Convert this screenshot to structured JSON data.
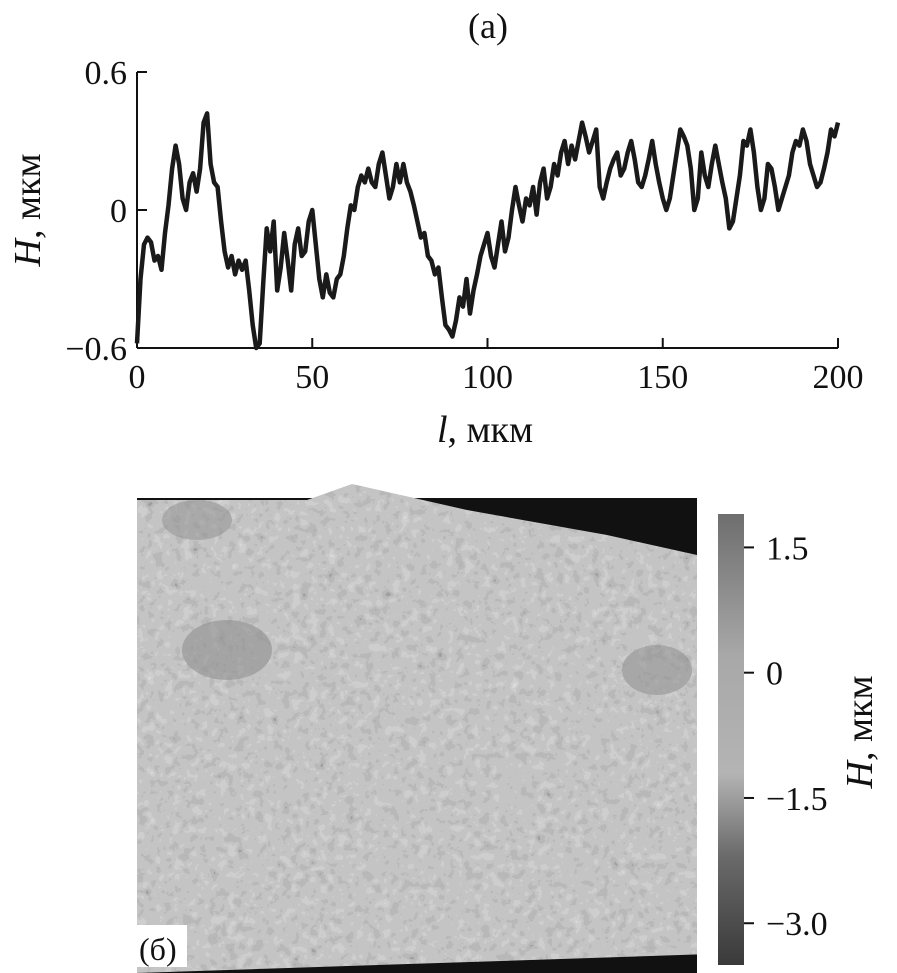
{
  "chart_data": [
    {
      "type": "line",
      "panel_label": "(a)",
      "xlabel_var": "l",
      "xlabel_unit": ", мкм",
      "ylabel_var": "H",
      "ylabel_unit": ", мкм",
      "xlim": [
        0,
        200
      ],
      "ylim": [
        -0.6,
        0.6
      ],
      "x_ticks": [
        0,
        50,
        100,
        150,
        200
      ],
      "y_ticks": [
        {
          "value": 0.6,
          "label": "0.6"
        },
        {
          "value": 0,
          "label": "0"
        },
        {
          "value": -0.6,
          "label": "−0.6"
        }
      ],
      "grid": false,
      "series": [
        {
          "color": "#1a1a1a",
          "x": [
            0,
            1,
            2,
            3,
            4,
            5,
            6,
            7,
            8,
            9,
            10,
            11,
            12,
            13,
            14,
            15,
            16,
            17,
            18,
            19,
            20,
            21,
            22,
            23,
            24,
            25,
            26,
            27,
            28,
            29,
            30,
            31,
            32,
            33,
            34,
            35,
            36,
            37,
            38,
            39,
            40,
            41,
            42,
            43,
            44,
            45,
            46,
            47,
            48,
            49,
            50,
            51,
            52,
            53,
            54,
            55,
            56,
            57,
            58,
            59,
            60,
            61,
            62,
            63,
            64,
            65,
            66,
            67,
            68,
            69,
            70,
            71,
            72,
            73,
            74,
            75,
            76,
            77,
            78,
            79,
            80,
            81,
            82,
            83,
            84,
            85,
            86,
            87,
            88,
            89,
            90,
            91,
            92,
            93,
            94,
            95,
            96,
            97,
            98,
            99,
            100,
            101,
            102,
            103,
            104,
            105,
            106,
            107,
            108,
            109,
            110,
            111,
            112,
            113,
            114,
            115,
            116,
            117,
            118,
            119,
            120,
            121,
            122,
            123,
            124,
            125,
            126,
            127,
            128,
            129,
            130,
            131,
            132,
            133,
            134,
            135,
            136,
            137,
            138,
            139,
            140,
            141,
            142,
            143,
            144,
            145,
            146,
            147,
            148,
            149,
            150,
            151,
            152,
            153,
            154,
            155,
            156,
            157,
            158,
            159,
            160,
            161,
            162,
            163,
            164,
            165,
            166,
            167,
            168,
            169,
            170,
            171,
            172,
            173,
            174,
            175,
            176,
            177,
            178,
            179,
            180,
            181,
            182,
            183,
            184,
            185,
            186,
            187,
            188,
            189,
            190,
            191,
            192,
            193,
            194,
            195,
            196,
            197,
            198,
            199,
            200
          ],
          "y": [
            -0.58,
            -0.3,
            -0.15,
            -0.12,
            -0.14,
            -0.22,
            -0.2,
            -0.26,
            -0.1,
            0.02,
            0.18,
            0.28,
            0.2,
            0.05,
            0.0,
            0.12,
            0.16,
            0.08,
            0.18,
            0.38,
            0.42,
            0.2,
            0.12,
            0.1,
            -0.05,
            -0.18,
            -0.25,
            -0.2,
            -0.28,
            -0.22,
            -0.26,
            -0.22,
            -0.35,
            -0.5,
            -0.62,
            -0.58,
            -0.32,
            -0.08,
            -0.18,
            -0.05,
            -0.35,
            -0.25,
            -0.1,
            -0.22,
            -0.35,
            -0.15,
            -0.08,
            -0.2,
            -0.18,
            -0.05,
            0.0,
            -0.15,
            -0.3,
            -0.38,
            -0.28,
            -0.36,
            -0.38,
            -0.3,
            -0.28,
            -0.2,
            -0.08,
            0.02,
            0.0,
            0.1,
            0.15,
            0.12,
            0.18,
            0.12,
            0.1,
            0.2,
            0.25,
            0.15,
            0.05,
            0.1,
            0.2,
            0.12,
            0.2,
            0.12,
            0.08,
            0.02,
            -0.05,
            -0.12,
            -0.1,
            -0.2,
            -0.22,
            -0.28,
            -0.25,
            -0.38,
            -0.5,
            -0.52,
            -0.55,
            -0.48,
            -0.38,
            -0.42,
            -0.3,
            -0.45,
            -0.35,
            -0.28,
            -0.2,
            -0.15,
            -0.1,
            -0.2,
            -0.25,
            -0.15,
            -0.05,
            -0.18,
            -0.12,
            0.0,
            0.1,
            0.02,
            -0.05,
            0.05,
            0.02,
            0.1,
            -0.02,
            0.12,
            0.18,
            0.05,
            0.1,
            0.2,
            0.15,
            0.25,
            0.3,
            0.2,
            0.28,
            0.22,
            0.3,
            0.38,
            0.32,
            0.25,
            0.3,
            0.35,
            0.1,
            0.05,
            0.12,
            0.18,
            0.22,
            0.25,
            0.15,
            0.18,
            0.25,
            0.3,
            0.22,
            0.12,
            0.1,
            0.15,
            0.22,
            0.3,
            0.2,
            0.12,
            0.05,
            0.0,
            0.05,
            0.15,
            0.25,
            0.35,
            0.32,
            0.28,
            0.18,
            0.0,
            0.05,
            0.25,
            0.15,
            0.1,
            0.2,
            0.28,
            0.2,
            0.12,
            0.05,
            -0.08,
            -0.05,
            0.05,
            0.15,
            0.3,
            0.28,
            0.35,
            0.25,
            0.1,
            0.0,
            0.05,
            0.2,
            0.18,
            0.1,
            0.0,
            0.05,
            0.1,
            0.15,
            0.25,
            0.3,
            0.28,
            0.35,
            0.3,
            0.2,
            0.15,
            0.1,
            0.12,
            0.18,
            0.25,
            0.35,
            0.32,
            0.38
          ]
        }
      ]
    },
    {
      "type": "heatmap",
      "panel_label": "(б)",
      "colorbar_label_var": "H",
      "colorbar_label_unit": ", мкм",
      "colorbar_range": [
        -3.5,
        1.9
      ],
      "colorbar_ticks": [
        {
          "value": 1.5,
          "label": "1.5"
        },
        {
          "value": 0,
          "label": "0"
        },
        {
          "value": -1.5,
          "label": "−1.5"
        },
        {
          "value": -3.0,
          "label": "−3.0"
        }
      ],
      "colorbar_colors": [
        {
          "value": -3.5,
          "color": "#3a3a3a"
        },
        {
          "value": -2.2,
          "color": "#6a6a6a"
        },
        {
          "value": -1.2,
          "color": "#b4b4b4"
        },
        {
          "value": 0.2,
          "color": "#a8a8a8"
        },
        {
          "value": 1.9,
          "color": "#6e6e6e"
        }
      ],
      "background_color": "#111111"
    }
  ]
}
